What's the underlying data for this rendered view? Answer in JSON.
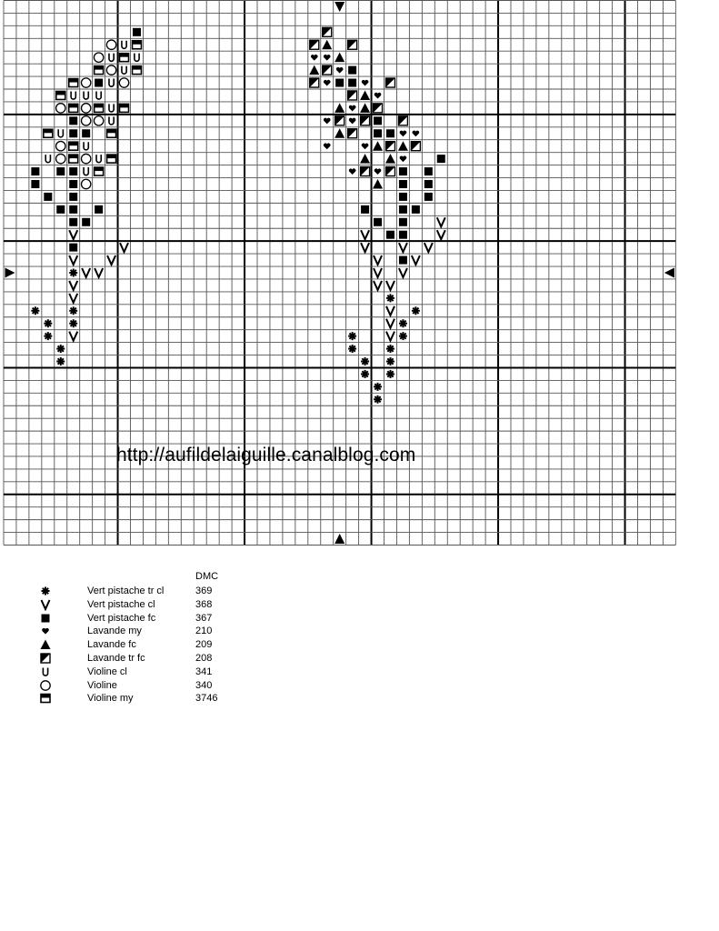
{
  "grid": {
    "cols": 53,
    "rows": 43,
    "bold_every": 10,
    "bold_offset": 9
  },
  "watermark": "http://aufildelaiguille.canalblog.com",
  "center_markers": [
    {
      "dir": "down",
      "row": 0,
      "col": 26
    },
    {
      "dir": "up",
      "row": 42,
      "col": 26
    },
    {
      "dir": "right",
      "row": 21,
      "col": 0
    },
    {
      "dir": "left",
      "row": 21,
      "col": 52
    }
  ],
  "legend": {
    "header": "DMC",
    "items": [
      {
        "symbol": "star",
        "name": "Vert pistache tr cl",
        "dmc": "369"
      },
      {
        "symbol": "v",
        "name": "Vert pistache cl",
        "dmc": "368"
      },
      {
        "symbol": "square",
        "name": "Vert pistache fc",
        "dmc": "367"
      },
      {
        "symbol": "heart",
        "name": "Lavande my",
        "dmc": "210"
      },
      {
        "symbol": "triangle",
        "name": "Lavande fc",
        "dmc": "209"
      },
      {
        "symbol": "half",
        "name": "Lavande tr fc",
        "dmc": "208"
      },
      {
        "symbol": "u",
        "name": "Violine cl",
        "dmc": "341"
      },
      {
        "symbol": "circle",
        "name": "Violine",
        "dmc": "340"
      },
      {
        "symbol": "box",
        "name": "Violine my",
        "dmc": "3746"
      }
    ]
  },
  "symbol_codes": {
    "*": "star",
    "V": "v",
    "S": "square",
    "H": "heart",
    "T": "triangle",
    "D": "half",
    "U": "u",
    "O": "circle",
    "B": "box"
  },
  "stitch_rows": {
    "2": "10S 25D",
    "3": "8O 9U 10B 24D 25T 27D",
    "4": "7O 8U 9B 10U 24H 25H 26T",
    "5": "7B 8O 9U 10B 24T 25D 26H 27S",
    "6": "5B 6O 7S 8U 9O 24D 25H 26S 27S 28H 30D",
    "7": "4B 5U 6U 7U 27D 28T 29H",
    "8": "4O 5B 6O 7B 8U 9B 26T 27H 28T 29D",
    "9": "5S 6O 7O 8U 25H 26D 27H 28D 29S 31D",
    "10": "3B 4U 5S 6S 8B 26T 27D 29S 30S 31H 32H",
    "11": "4O 5B 6U 25H 28H 29T 30D 31T 32D",
    "12": "3U 4O 5B 6O 7U 8B 28T 30T 31H 34S",
    "13": "2S 4S 5S 6U 7B 27H 28D 29H 30D 31S 33S",
    "14": "2S 5S 6O 29T 31S 33S",
    "15": "3S 5S 31S 33S",
    "16": "4S 5S 7S 28S 31S 32S",
    "17": "5S 6S 29S 31S 34V",
    "18": "5V 28V 30S 31S 34V",
    "19": "5S 9V 28V 31V 33V",
    "20": "5V 8V 29V 31S 32V",
    "21": "5* 6V 7V 29V 31V",
    "22": "5V 29V 30V",
    "23": "5V 30*",
    "24": "2* 5* 30V 32*",
    "25": "3* 5* 30V 31*",
    "26": "3* 5V 27* 30V 31*",
    "27": "4* 27* 30*",
    "28": "4* 28* 30*",
    "29": "28* 30*",
    "30": "29*",
    "31": "29*"
  }
}
